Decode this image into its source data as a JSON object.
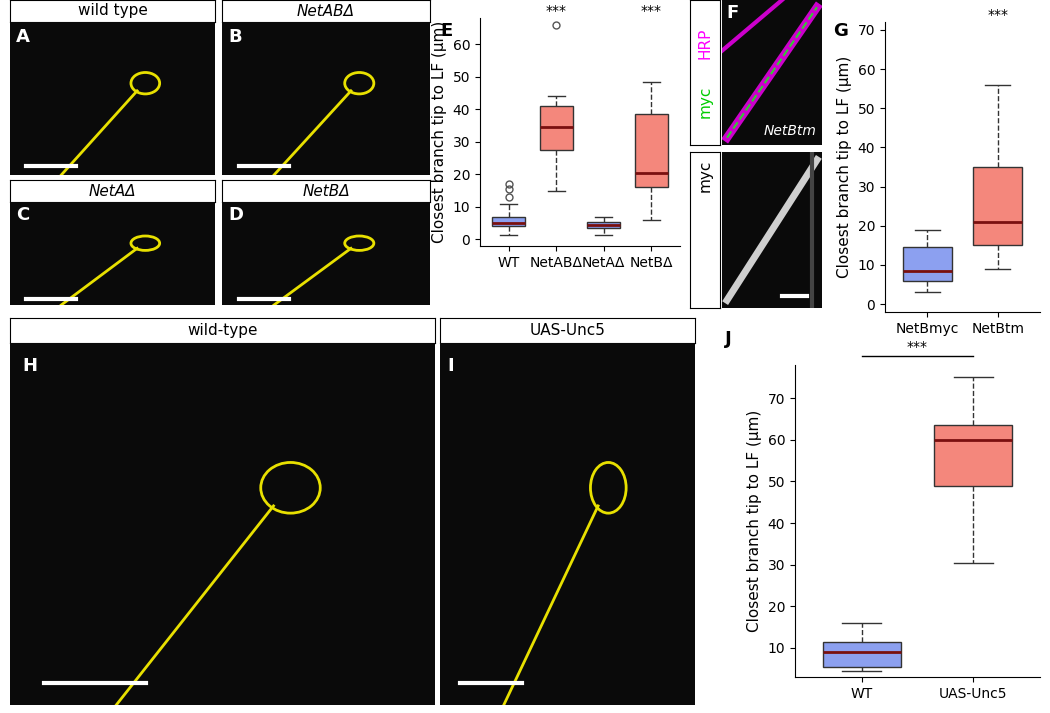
{
  "image_panels": [
    {
      "letter": "A",
      "title": "wild type"
    },
    {
      "letter": "B",
      "title": "NetABΔ"
    },
    {
      "letter": "C",
      "title": "NetAΔ"
    },
    {
      "letter": "D",
      "title": "NetBΔ"
    },
    {
      "letter": "F",
      "channel_labels": [
        {
          "text": "HRP",
          "color": "#ff00ff"
        },
        {
          "text": "myc",
          "color": "#00cc00"
        }
      ],
      "genotype": "NetBtm",
      "lower_label": "myc"
    },
    {
      "letter": "H",
      "title": "wild-type"
    },
    {
      "letter": "I",
      "title": "UAS-Unc5"
    }
  ],
  "chart_data": [
    {
      "letter": "E",
      "type": "box",
      "y_label": "Closest branch tip to LF (μm)",
      "categories": [
        "WT",
        "NetABΔ",
        "NetAΔ",
        "NetBΔ"
      ],
      "boxes": [
        {
          "min": 1.5,
          "q1": 4,
          "median": 5,
          "q3": 7,
          "max": 11,
          "outliers": [
            13,
            15.5,
            17
          ]
        },
        {
          "min": 15,
          "q1": 27.5,
          "median": 34.5,
          "q3": 41,
          "max": 44,
          "outliers": [
            66
          ]
        },
        {
          "min": 1.5,
          "q1": 3.5,
          "median": 4.5,
          "q3": 5.5,
          "max": 7,
          "outliers": []
        },
        {
          "min": 6,
          "q1": 16,
          "median": 20.5,
          "q3": 38.5,
          "max": 48.5,
          "outliers": []
        }
      ],
      "colors": [
        "#8ca0f0",
        "#f4877c",
        "#8ca0f0",
        "#f4877c"
      ],
      "significance": [
        null,
        "***",
        null,
        "***"
      ],
      "ylim": [
        -2,
        68
      ],
      "yticks": [
        0,
        10,
        20,
        30,
        40,
        50,
        60
      ]
    },
    {
      "letter": "G",
      "type": "box",
      "y_label": "Closest branch tip to LF (μm)",
      "categories": [
        "NetBmyc",
        "NetBtm"
      ],
      "boxes": [
        {
          "min": 3,
          "q1": 6,
          "median": 8.5,
          "q3": 14.5,
          "max": 19,
          "outliers": []
        },
        {
          "min": 9,
          "q1": 15,
          "median": 21,
          "q3": 35,
          "max": 56,
          "outliers": []
        }
      ],
      "colors": [
        "#8ca0f0",
        "#f4877c"
      ],
      "significance": [
        null,
        "***"
      ],
      "ylim": [
        -2,
        72
      ],
      "yticks": [
        0,
        10,
        20,
        30,
        40,
        50,
        60,
        70
      ]
    },
    {
      "letter": "J",
      "type": "box",
      "y_label": "Closest branch tip to LF (μm)",
      "categories": [
        "WT",
        "UAS-Unc5"
      ],
      "boxes": [
        {
          "min": 4.5,
          "q1": 5.5,
          "median": 9,
          "q3": 11.5,
          "max": 16,
          "outliers": []
        },
        {
          "min": 30.5,
          "q1": 49,
          "median": 60,
          "q3": 63.5,
          "max": 75,
          "outliers": []
        }
      ],
      "colors": [
        "#8ca0f0",
        "#f4877c"
      ],
      "bracket_significance": "***",
      "ylim": [
        3,
        78
      ],
      "yticks": [
        10,
        20,
        30,
        40,
        50,
        60,
        70
      ]
    }
  ]
}
